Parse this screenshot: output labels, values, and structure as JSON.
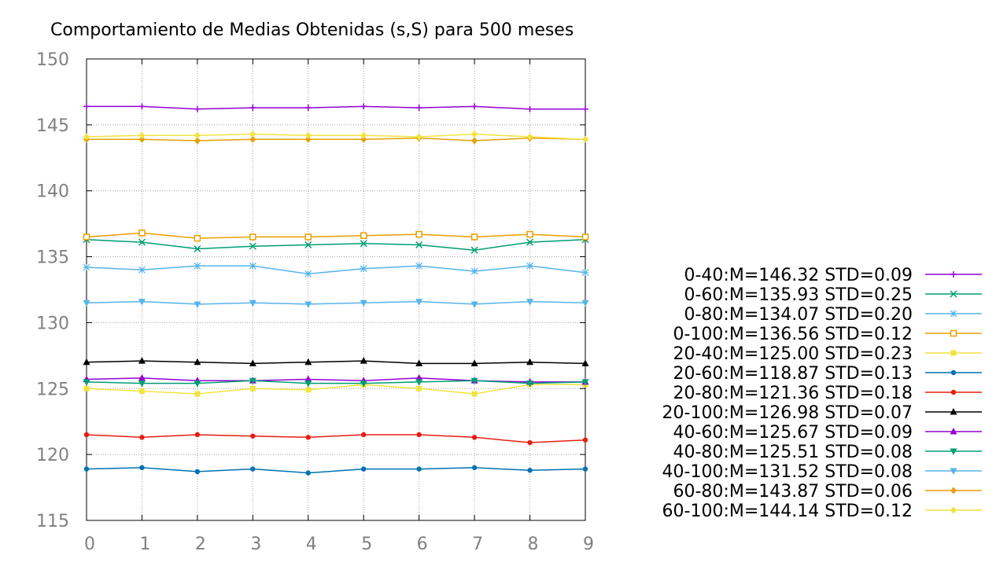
{
  "chart_data": {
    "type": "line",
    "title": "Comportamiento de Medias Obtenidas (s,S) para 500 meses",
    "xlabel": "",
    "ylabel": "",
    "x": [
      0,
      1,
      2,
      3,
      4,
      5,
      6,
      7,
      8,
      9
    ],
    "xlim": [
      0,
      9
    ],
    "ylim": [
      115,
      150
    ],
    "x_ticks": [
      "0",
      "1",
      "2",
      "3",
      "4",
      "5",
      "6",
      "7",
      "8",
      "9"
    ],
    "y_ticks": [
      "115",
      "120",
      "125",
      "130",
      "135",
      "140",
      "145",
      "150"
    ],
    "grid": true,
    "legend_position": "right",
    "series": [
      {
        "name": "0-40:M=146.32 STD=0.09",
        "color": "#9400d3",
        "marker": "plus",
        "values": [
          146.4,
          146.4,
          146.2,
          146.3,
          146.3,
          146.4,
          146.3,
          146.4,
          146.2,
          146.2
        ]
      },
      {
        "name": "0-60:M=135.93 STD=0.25",
        "color": "#009e73",
        "marker": "cross",
        "values": [
          136.3,
          136.1,
          135.6,
          135.8,
          135.9,
          136.0,
          135.9,
          135.5,
          136.1,
          136.3
        ]
      },
      {
        "name": "0-80:M=134.07 STD=0.20",
        "color": "#56b4e9",
        "marker": "star",
        "values": [
          134.2,
          134.0,
          134.3,
          134.3,
          133.7,
          134.1,
          134.3,
          133.9,
          134.3,
          133.8
        ]
      },
      {
        "name": "0-100:M=136.56 STD=0.12",
        "color": "#e69f00",
        "marker": "square-open",
        "values": [
          136.5,
          136.8,
          136.4,
          136.5,
          136.5,
          136.6,
          136.7,
          136.5,
          136.7,
          136.5
        ]
      },
      {
        "name": "20-40:M=125.00 STD=0.23",
        "color": "#f0e442",
        "marker": "square",
        "values": [
          125.0,
          124.8,
          124.6,
          125.0,
          124.9,
          125.3,
          125.0,
          124.6,
          125.3,
          125.3
        ]
      },
      {
        "name": "20-60:M=118.87 STD=0.13",
        "color": "#0072b2",
        "marker": "circle",
        "values": [
          118.9,
          119.0,
          118.7,
          118.9,
          118.6,
          118.9,
          118.9,
          119.0,
          118.8,
          118.9
        ]
      },
      {
        "name": "20-80:M=121.36 STD=0.18",
        "color": "#e51e10",
        "marker": "circle",
        "values": [
          121.5,
          121.3,
          121.5,
          121.4,
          121.3,
          121.5,
          121.5,
          121.3,
          120.9,
          121.1
        ]
      },
      {
        "name": "20-100:M=126.98 STD=0.07",
        "color": "#000000",
        "marker": "triangle-up",
        "values": [
          127.0,
          127.1,
          127.0,
          126.9,
          127.0,
          127.1,
          126.9,
          126.9,
          127.0,
          126.9
        ]
      },
      {
        "name": "40-60:M=125.67 STD=0.09",
        "color": "#9400d3",
        "marker": "triangle-up",
        "values": [
          125.7,
          125.8,
          125.6,
          125.6,
          125.7,
          125.6,
          125.8,
          125.6,
          125.5,
          125.5
        ]
      },
      {
        "name": "40-80:M=125.51 STD=0.08",
        "color": "#009e73",
        "marker": "triangle-down",
        "values": [
          125.5,
          125.4,
          125.4,
          125.6,
          125.4,
          125.4,
          125.5,
          125.6,
          125.4,
          125.5
        ]
      },
      {
        "name": "40-100:M=131.52 STD=0.08",
        "color": "#56b4e9",
        "marker": "triangle-down",
        "values": [
          131.5,
          131.6,
          131.4,
          131.5,
          131.4,
          131.5,
          131.6,
          131.4,
          131.6,
          131.5
        ]
      },
      {
        "name": "60-80:M=143.87 STD=0.06",
        "color": "#e69f00",
        "marker": "diamond",
        "values": [
          143.9,
          143.9,
          143.8,
          143.9,
          143.9,
          143.9,
          144.0,
          143.8,
          144.0,
          143.9
        ]
      },
      {
        "name": "60-100:M=144.14 STD=0.12",
        "color": "#f0e442",
        "marker": "diamond",
        "values": [
          144.1,
          144.2,
          144.2,
          144.3,
          144.2,
          144.2,
          144.1,
          144.3,
          144.1,
          143.9
        ]
      }
    ]
  }
}
